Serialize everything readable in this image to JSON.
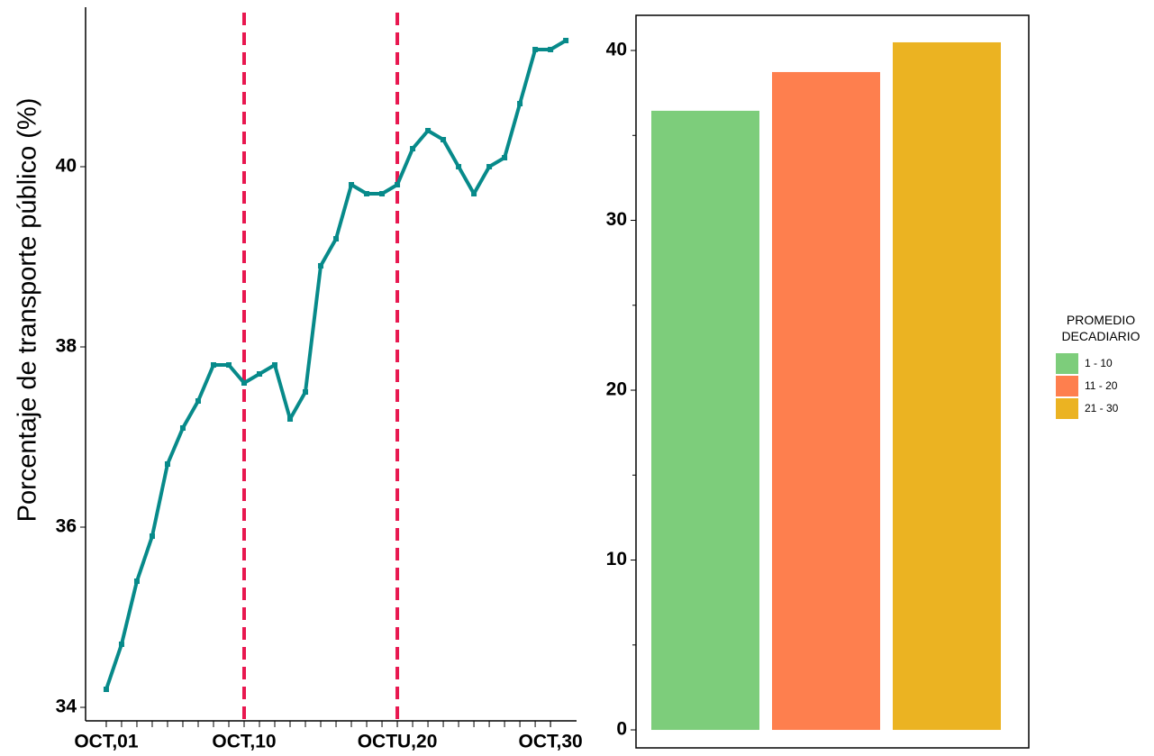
{
  "chart_data": [
    {
      "type": "line",
      "y_label": "Porcentaje de transporte público (%)",
      "x": [
        1,
        2,
        3,
        4,
        5,
        6,
        7,
        8,
        9,
        10,
        11,
        12,
        13,
        14,
        15,
        16,
        17,
        18,
        19,
        20,
        21,
        22,
        23,
        24,
        25,
        26,
        27,
        28,
        29,
        30,
        31
      ],
      "series": [
        {
          "color": "#078a8a",
          "values": [
            34.2,
            34.7,
            35.4,
            35.9,
            36.7,
            37.1,
            37.4,
            37.8,
            37.8,
            37.6,
            37.7,
            37.8,
            37.2,
            37.5,
            38.9,
            39.2,
            39.8,
            39.7,
            39.7,
            39.8,
            40.2,
            40.4,
            40.3,
            40.0,
            39.7,
            40.0,
            40.1,
            40.7,
            41.3,
            41.3,
            41.4
          ]
        }
      ],
      "xlim": [
        -0.35,
        31.7
      ],
      "ylim": [
        33.85,
        41.77
      ],
      "xticks": [
        {
          "value": 1,
          "label": "OCT,01"
        },
        {
          "value": 10,
          "label": "OCT,10"
        },
        {
          "value": 20,
          "label": "OCTU,20"
        },
        {
          "value": 30,
          "label": "OCT,30"
        }
      ],
      "x_minor_ticks": [
        1,
        2,
        3,
        4,
        5,
        6,
        7,
        8,
        9,
        10,
        11,
        12,
        13,
        14,
        15,
        16,
        17,
        18,
        19,
        20,
        21,
        22,
        23,
        24,
        25,
        26,
        27,
        28,
        29,
        30
      ],
      "yticks": [
        34,
        36,
        38,
        40
      ],
      "vlines": [
        10,
        20
      ],
      "vline_color": "#e8174f"
    },
    {
      "type": "bar",
      "categories": [
        "1 - 10",
        "11 - 20",
        "21 - 30"
      ],
      "values": [
        36.45,
        38.73,
        40.48
      ],
      "colors": [
        "#7dcd7b",
        "#fe7f4e",
        "#ebb322"
      ],
      "ylim": [
        -1.06,
        42.07
      ],
      "yticks": [
        0,
        10,
        20,
        30,
        40
      ],
      "y_minor_ticks": [
        5,
        15,
        25,
        35
      ],
      "legend": {
        "title": "PROMEDIO DECADIARIO",
        "position": "right"
      }
    }
  ]
}
